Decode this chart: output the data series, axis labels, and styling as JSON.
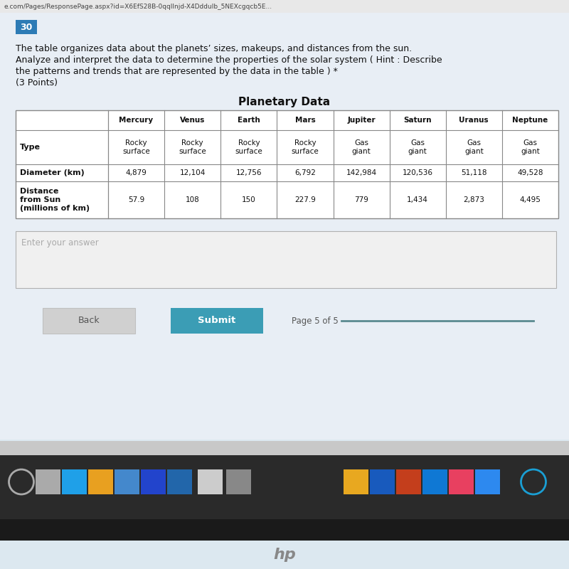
{
  "url_bar_text": "e.com/Pages/ResponsePage.aspx?id=X6EfS28B-0qqIInjd-X4DdduIb_5NEXcgqcb5E...",
  "question_number": "30",
  "question_number_bg": "#2d7bb5",
  "question_text_line1": "The table organizes data about the planets’ sizes, makeups, and distances from the sun.",
  "question_text_line2": "Analyze and interpret the data to determine the properties of the solar system ( Hint : Describe",
  "question_text_line3": "the patterns and trends that are represented by the data in the table ) *",
  "question_text_line4": "(3 Points)",
  "table_title": "Planetary Data",
  "col_headers": [
    "Mercury",
    "Venus",
    "Earth",
    "Mars",
    "Jupiter",
    "Saturn",
    "Uranus",
    "Neptune"
  ],
  "row_labels": [
    "Type",
    "Diameter (km)",
    "Distance\nfrom Sun\n(millions of km)"
  ],
  "type_values": [
    "Rocky\nsurface",
    "Rocky\nsurface",
    "Rocky\nsurface",
    "Rocky\nsurface",
    "Gas\ngiant",
    "Gas\ngiant",
    "Gas\ngiant",
    "Gas\ngiant"
  ],
  "diameter_values": [
    "4,879",
    "12,104",
    "12,756",
    "6,792",
    "142,984",
    "120,536",
    "51,118",
    "49,528"
  ],
  "distance_values": [
    "57.9",
    "108",
    "150",
    "227.9",
    "779",
    "1,434",
    "2,873",
    "4,495"
  ],
  "enter_answer_text": "Enter your answer",
  "back_button_text": "Back",
  "submit_button_text": "Submit",
  "submit_button_color": "#3b9db5",
  "page_text": "Page 5 of 5",
  "bg_color_top": "#e8eef5",
  "bg_color_main": "#dce8f0",
  "table_bg": "#ffffff",
  "url_bar_bg": "#e8e8e8",
  "taskbar_bg": "#2a2a2a",
  "taskbar_lower_bg": "#1a1a1a",
  "answer_box_bg": "#f0f0f0",
  "answer_box_border": "#b0b0b0",
  "back_btn_bg": "#d0d0d0",
  "back_btn_border": "#c0c0c0",
  "page_line_color": "#5a8a90"
}
